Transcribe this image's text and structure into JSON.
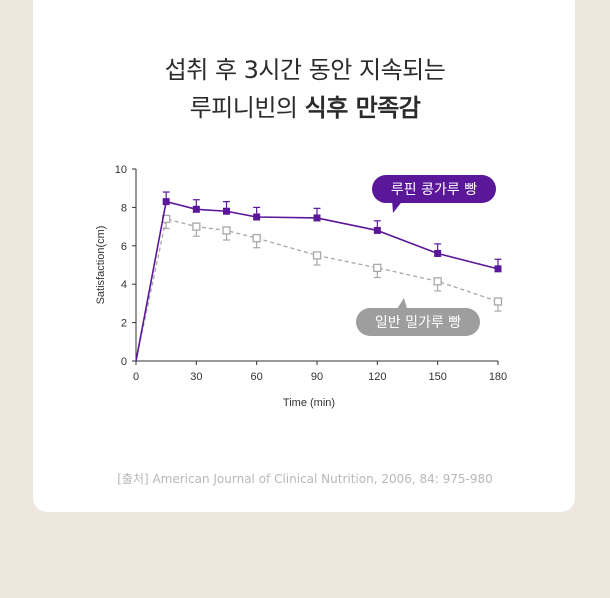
{
  "title": {
    "line1": "섭취 후 3시간 동안 지속되는",
    "line2_plain": "루피니빈의 ",
    "line2_bold": "식후 만족감"
  },
  "source": "[출처] American Journal of Clinical Nutrition, 2006, 84: 975-980",
  "colors": {
    "background": "#ece6dd",
    "card": "#ffffff",
    "lupin": "#5a179a",
    "wheat": "#a8a8a8",
    "wheat_callout": "#9e9e9e"
  },
  "chart_data": {
    "type": "line",
    "xlabel": "Time (min)",
    "ylabel": "Satisfaction(cm)",
    "xlim": [
      0,
      180
    ],
    "ylim": [
      0,
      10
    ],
    "xticks": [
      0,
      30,
      60,
      90,
      120,
      150,
      180
    ],
    "yticks": [
      0,
      2,
      4,
      6,
      8,
      10
    ],
    "grid": false,
    "x": [
      0,
      15,
      30,
      45,
      60,
      90,
      120,
      150,
      180
    ],
    "series": [
      {
        "name": "루핀 콩가루 빵",
        "values": [
          0,
          8.3,
          7.9,
          7.8,
          7.5,
          7.45,
          6.8,
          5.6,
          4.8
        ],
        "error": [
          0,
          0.5,
          0.5,
          0.5,
          0.5,
          0.5,
          0.5,
          0.5,
          0.5
        ],
        "style": "solid",
        "marker": "filled-square"
      },
      {
        "name": "일반 밀가루 빵",
        "values": [
          0,
          7.4,
          7.0,
          6.8,
          6.4,
          5.5,
          4.85,
          4.15,
          3.1
        ],
        "error": [
          0,
          0.5,
          0.5,
          0.5,
          0.5,
          0.5,
          0.5,
          0.5,
          0.5
        ],
        "style": "dashed",
        "marker": "open-square"
      }
    ]
  }
}
